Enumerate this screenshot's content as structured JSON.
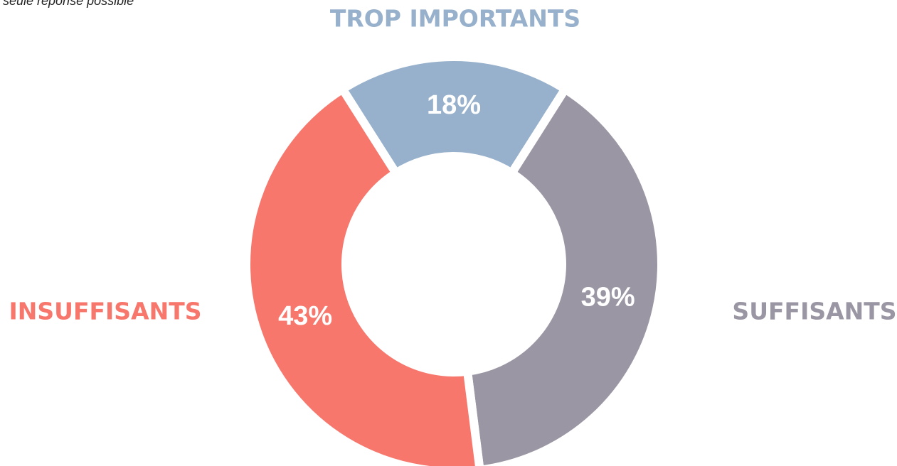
{
  "chart_data": {
    "type": "donut",
    "note": "seule réponse possible",
    "categories": [
      "TROP IMPORTANTS",
      "SUFFISANTS",
      "INSUFFISANTS"
    ],
    "values": [
      18,
      39,
      43
    ],
    "value_labels": [
      "18%",
      "39%",
      "43%"
    ],
    "colors": [
      "#97b0cb",
      "#9b96a3",
      "#f7776d"
    ]
  }
}
